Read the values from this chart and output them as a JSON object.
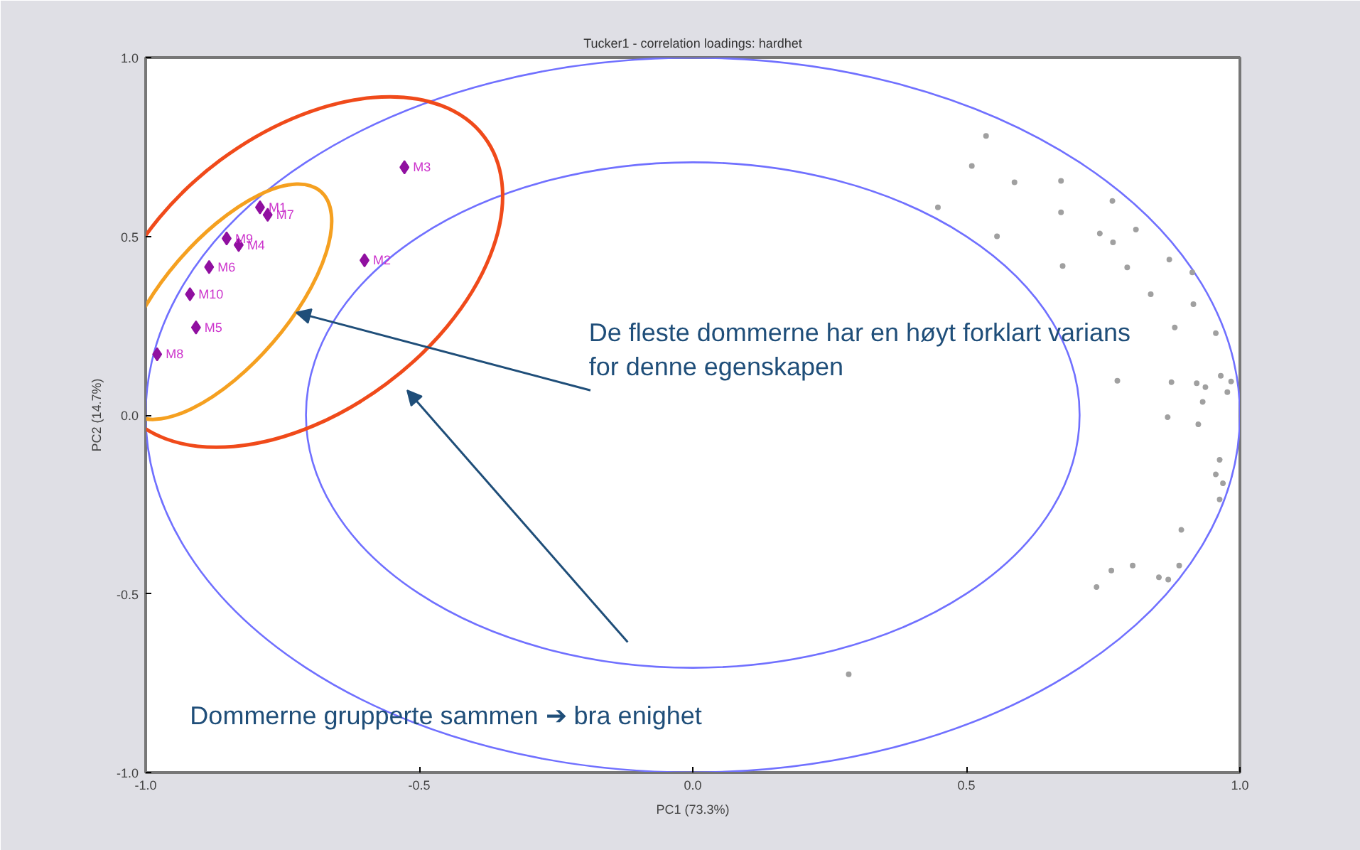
{
  "chart_data": {
    "type": "scatter",
    "title": "Tucker1 - correlation loadings: hardhet",
    "xlabel": "PC1 (73.3%)",
    "ylabel": "PC2 (14.7%)",
    "xlim": [
      -1,
      1
    ],
    "ylim": [
      -1,
      1
    ],
    "xticks": [
      {
        "value": -1,
        "label": "-1.0"
      },
      {
        "value": -0.5,
        "label": "-0.5"
      },
      {
        "value": 0,
        "label": "0.0"
      },
      {
        "value": 0.5,
        "label": "0.5"
      },
      {
        "value": 1,
        "label": "1.0"
      }
    ],
    "yticks": [
      {
        "value": -1,
        "label": "-1.0"
      },
      {
        "value": -0.5,
        "label": "-0.5"
      },
      {
        "value": 0,
        "label": "0.0"
      },
      {
        "value": 0.5,
        "label": "0.5"
      },
      {
        "value": 1,
        "label": "1.0"
      }
    ],
    "annotations": [
      "De fleste dommerne har en høyt forklart varians\nfor denne egenskapen",
      "Dommerne grupperte sammen ➔ bra enighet"
    ],
    "series": [
      {
        "type": "scatter",
        "marker": "circle",
        "color": "#a0a0a0",
        "x": [
          0.536,
          0.51,
          0.588,
          0.673,
          0.448,
          0.767,
          0.673,
          0.556,
          0.744,
          0.768,
          0.81,
          0.676,
          0.794,
          0.871,
          0.913,
          0.837,
          0.915,
          0.881,
          0.956,
          0.776,
          0.875,
          0.921,
          0.937,
          0.965,
          0.984,
          0.932,
          0.977,
          0.868,
          0.924,
          0.963,
          0.956,
          0.969,
          0.963,
          0.893,
          0.765,
          0.804,
          0.889,
          0.852,
          0.869,
          0.738,
          0.285
        ],
        "values": [
          0.781,
          0.697,
          0.651,
          0.655,
          0.581,
          0.599,
          0.567,
          0.5,
          0.508,
          0.483,
          0.519,
          0.417,
          0.413,
          0.435,
          0.399,
          0.338,
          0.31,
          0.245,
          0.229,
          0.096,
          0.092,
          0.089,
          0.078,
          0.11,
          0.094,
          0.037,
          0.064,
          -0.006,
          -0.026,
          -0.125,
          -0.166,
          -0.191,
          -0.236,
          -0.321,
          -0.435,
          -0.421,
          -0.421,
          -0.454,
          -0.46,
          -0.481,
          -0.725
        ]
      },
      {
        "type": "scatter",
        "marker": "diamond",
        "color": "#9010a0",
        "x": [
          -0.791,
          -0.6,
          -0.527,
          -0.83,
          -0.908,
          -0.884,
          -0.777,
          -0.979,
          -0.852,
          -0.919
        ],
        "values": [
          0.581,
          0.433,
          0.693,
          0.476,
          0.245,
          0.414,
          0.56,
          0.17,
          0.494,
          0.338
        ],
        "value_labels": [
          "M1",
          "M2",
          "M3",
          "M4",
          "M5",
          "M6",
          "M7",
          "M8",
          "M9",
          "M10"
        ]
      }
    ]
  }
}
